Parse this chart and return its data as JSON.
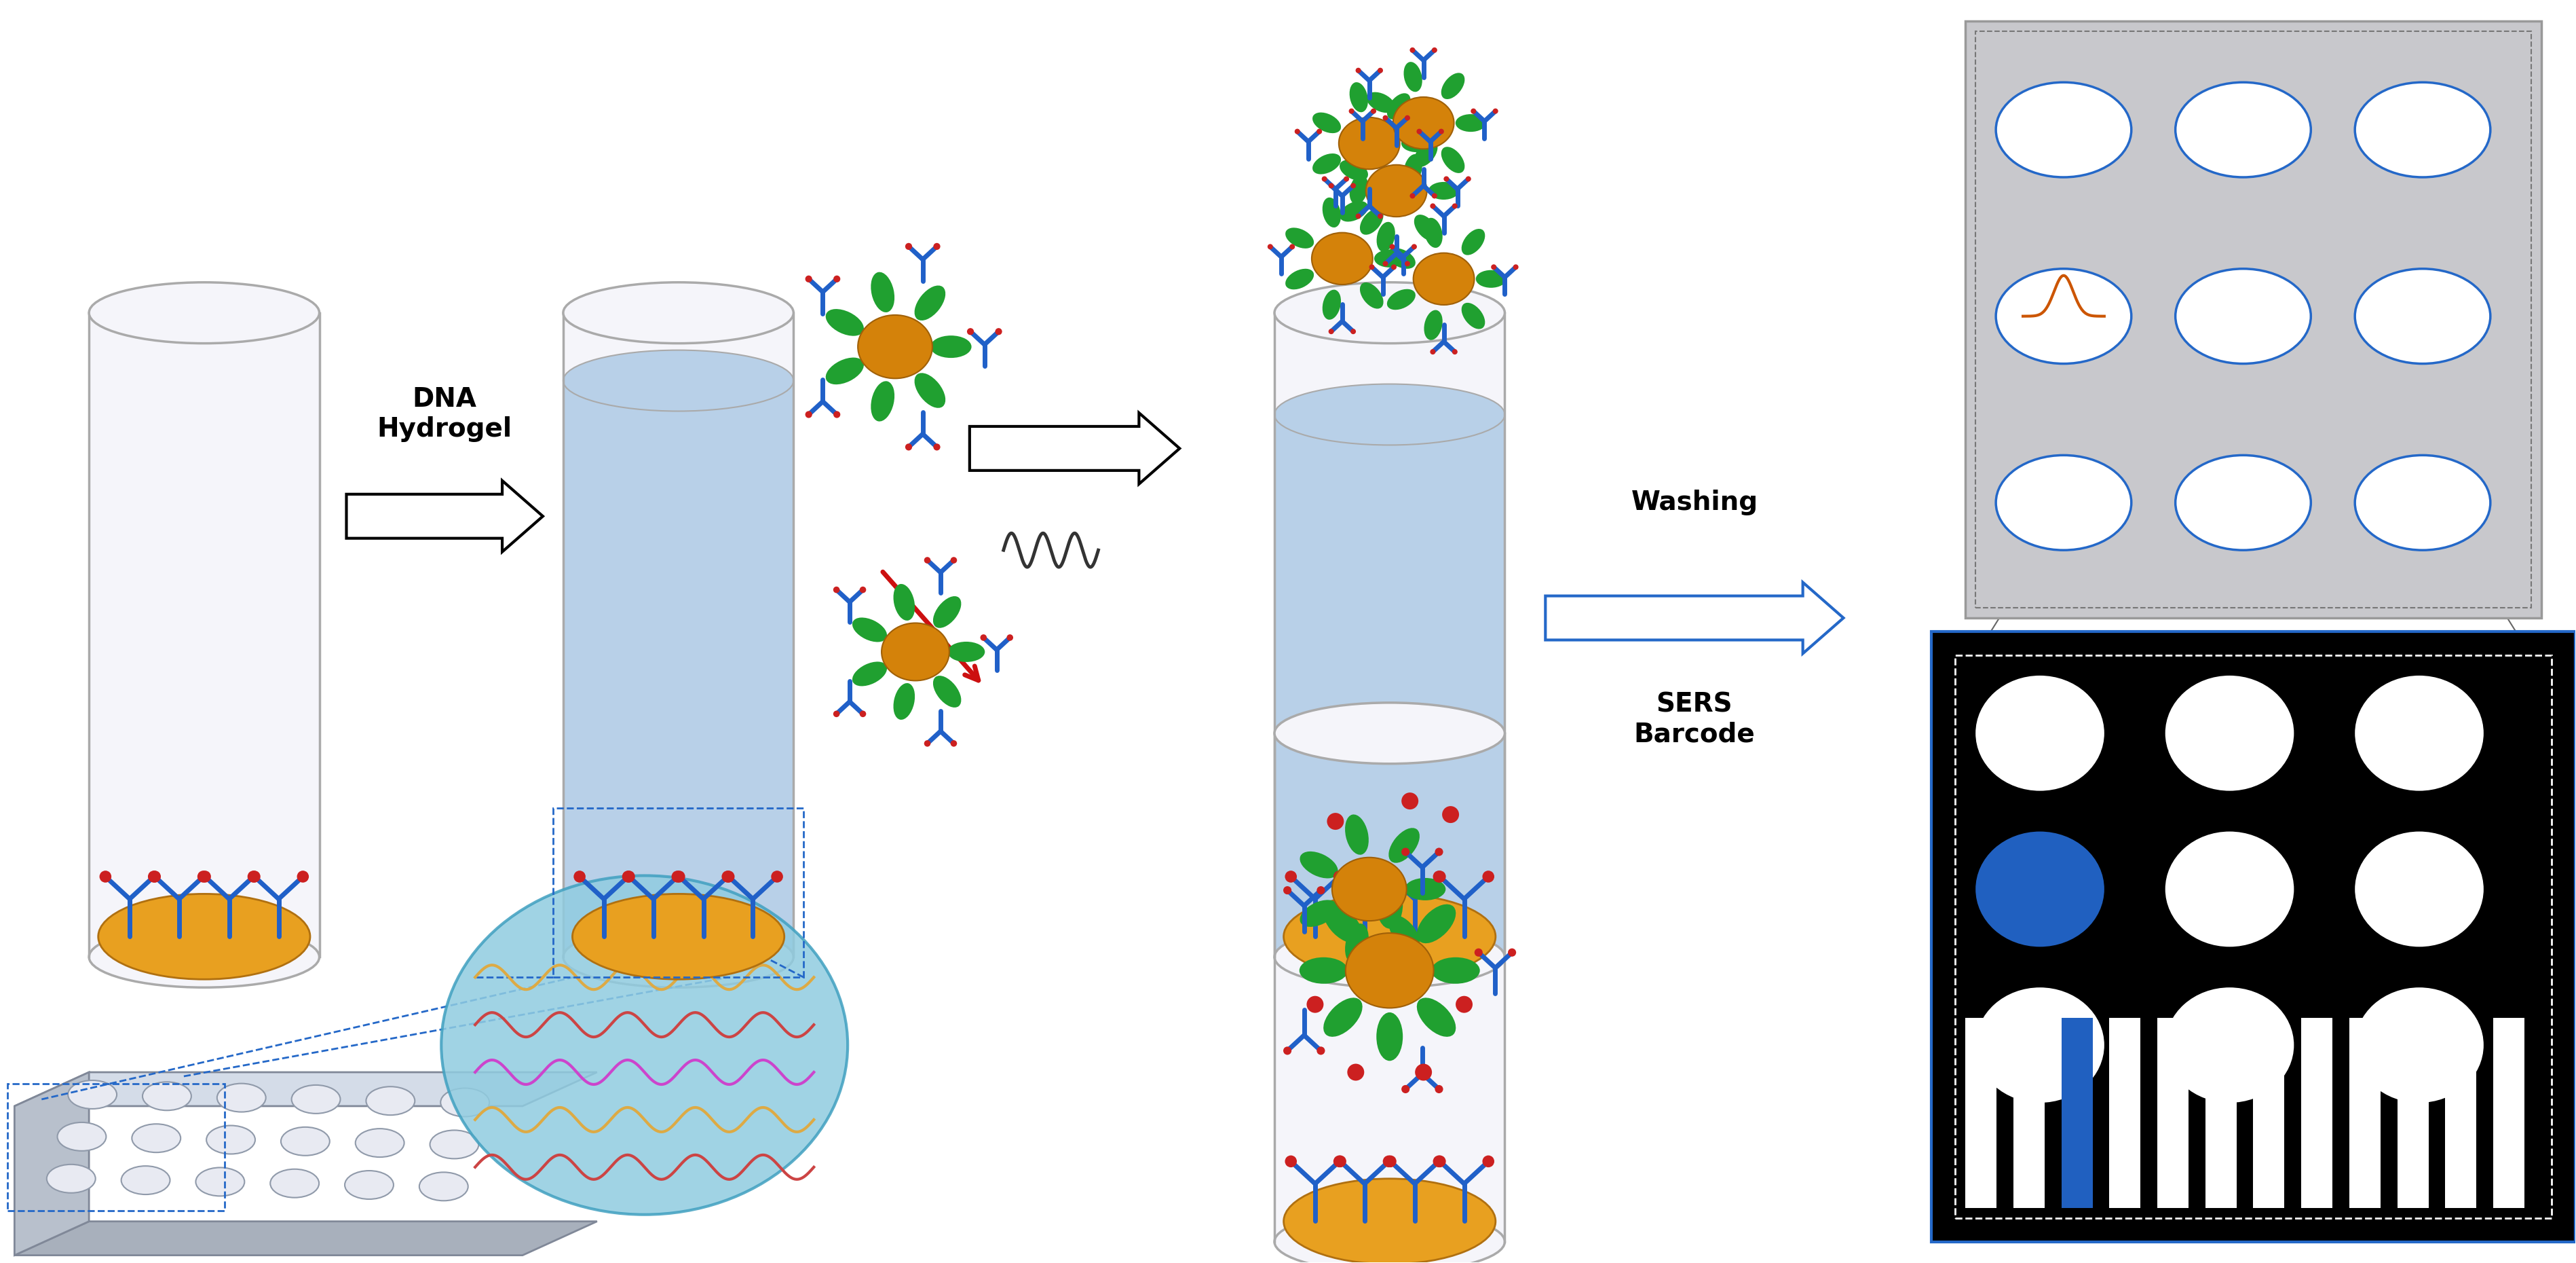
{
  "fig_width": 37.96,
  "fig_height": 18.6,
  "background": "#ffffff",
  "text_dna_hydrogel": "DNA\nHydrogel",
  "text_washing": "Washing",
  "text_sers_barcode": "SERS\nBarcode",
  "xlim": [
    0,
    38
  ],
  "ylim": [
    0,
    18.6
  ],
  "col_cyl_outline": "#aaaaaa",
  "col_cyl_body": "#f5f5fa",
  "col_water": "#b8d0e8",
  "col_gold": "#e8a020",
  "col_gold_dark": "#b07010",
  "col_np": "#d4820a",
  "col_np_dark": "#a06008",
  "col_ab_blue": "#2060c8",
  "col_ab_red": "#cc2020",
  "col_green": "#20a030",
  "col_dashed": "#2468c8",
  "col_gel_fill": "#90ccE0",
  "col_gel_outline": "#40a0c0",
  "col_wavy1": "#cc4444",
  "col_wavy2": "#ddaa44",
  "col_wavy3": "#cc44cc",
  "col_plate_top": "#d4dce8",
  "col_plate_side": "#b8c0cc",
  "col_plate_front": "#a8b0bc",
  "col_well": "#e8eaf2",
  "col_barcode_bg": "#000000",
  "col_barcode_white": "#ffffff",
  "col_barcode_blue": "#2060c0",
  "col_upper_bg": "#c8c8cc",
  "col_peak_orange": "#cc5500",
  "col_red_arrow": "#cc1010",
  "col_black_wavy": "#333333"
}
